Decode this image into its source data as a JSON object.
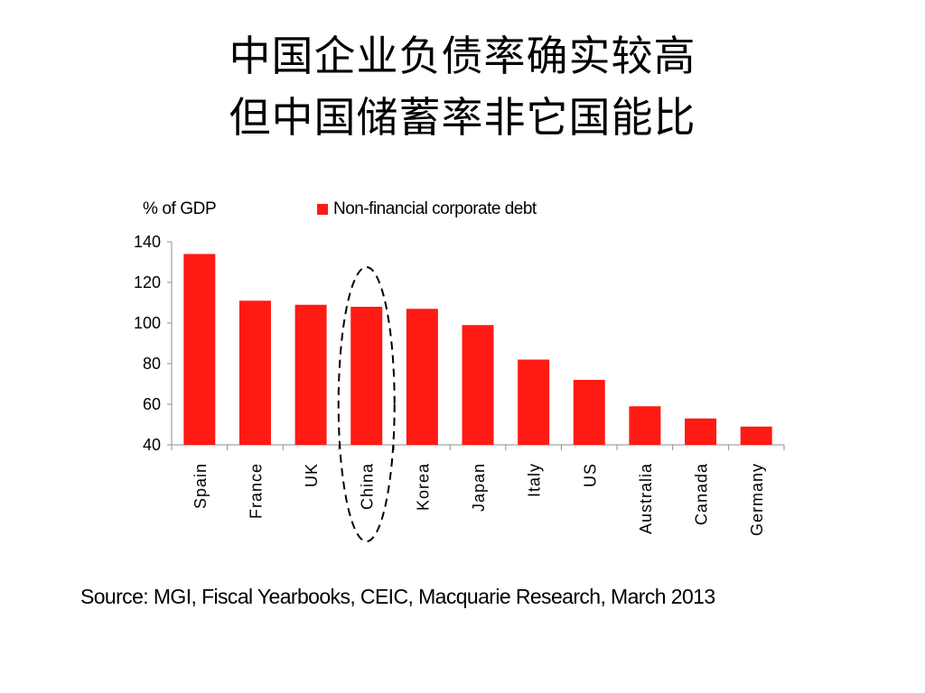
{
  "title": {
    "line1": "中国企业负债率确实较高",
    "line2": "但中国储蓄率非它国能比"
  },
  "source": "Source: MGI, Fiscal Yearbooks, CEIC, Macquarie Research, March 2013",
  "chart_data": {
    "type": "bar",
    "ylabel": "% of GDP",
    "ylim": [
      40,
      140
    ],
    "yticks": [
      40,
      60,
      80,
      100,
      120,
      140
    ],
    "categories": [
      "Spain",
      "France",
      "UK",
      "China",
      "Korea",
      "Japan",
      "Italy",
      "US",
      "Australia",
      "Canada",
      "Germany"
    ],
    "series": [
      {
        "name": "Non-financial corporate debt",
        "values": [
          134,
          111,
          109,
          108,
          107,
          99,
          82,
          72,
          59,
          53,
          49
        ],
        "color": "#ff1a14"
      }
    ],
    "highlight": "China",
    "legend_position": "top",
    "grid": false
  }
}
